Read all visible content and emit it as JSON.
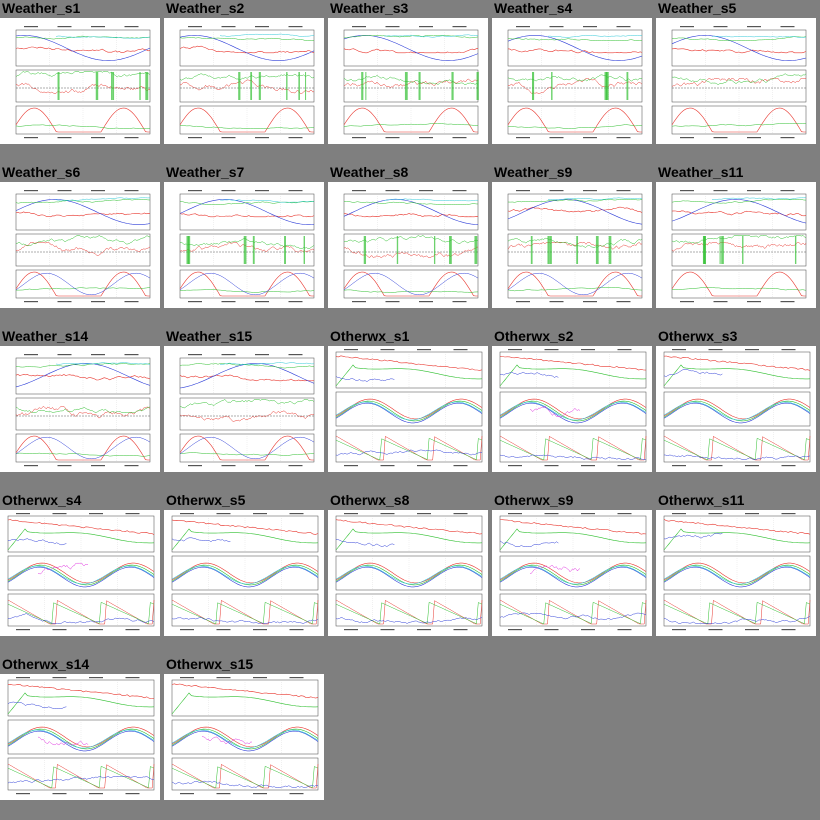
{
  "gallery": {
    "thumbnails": [
      {
        "title": "Weather_s1",
        "style": "weather"
      },
      {
        "title": "Weather_s2",
        "style": "weather"
      },
      {
        "title": "Weather_s3",
        "style": "weather"
      },
      {
        "title": "Weather_s4",
        "style": "weather"
      },
      {
        "title": "Weather_s5",
        "style": "weather"
      },
      {
        "title": "Weather_s6",
        "style": "weather"
      },
      {
        "title": "Weather_s7",
        "style": "weather"
      },
      {
        "title": "Weather_s8",
        "style": "weather"
      },
      {
        "title": "Weather_s9",
        "style": "weather"
      },
      {
        "title": "Weather_s11",
        "style": "weather"
      },
      {
        "title": "Weather_s14",
        "style": "weather"
      },
      {
        "title": "Weather_s15",
        "style": "weather"
      },
      {
        "title": "Otherwx_s1",
        "style": "otherwx"
      },
      {
        "title": "Otherwx_s2",
        "style": "otherwx"
      },
      {
        "title": "Otherwx_s3",
        "style": "otherwx"
      },
      {
        "title": "Otherwx_s4",
        "style": "otherwx"
      },
      {
        "title": "Otherwx_s5",
        "style": "otherwx"
      },
      {
        "title": "Otherwx_s8",
        "style": "otherwx"
      },
      {
        "title": "Otherwx_s9",
        "style": "otherwx"
      },
      {
        "title": "Otherwx_s11",
        "style": "otherwx"
      },
      {
        "title": "Otherwx_s14",
        "style": "otherwx"
      },
      {
        "title": "Otherwx_s15",
        "style": "otherwx"
      }
    ]
  },
  "colors": {
    "background": "#7f7f7f",
    "panel": "#ffffff",
    "red": "#e8372f",
    "green": "#2fbf2f",
    "blue": "#2f3fd8",
    "cyan": "#30c8d8",
    "magenta": "#e030e0"
  }
}
